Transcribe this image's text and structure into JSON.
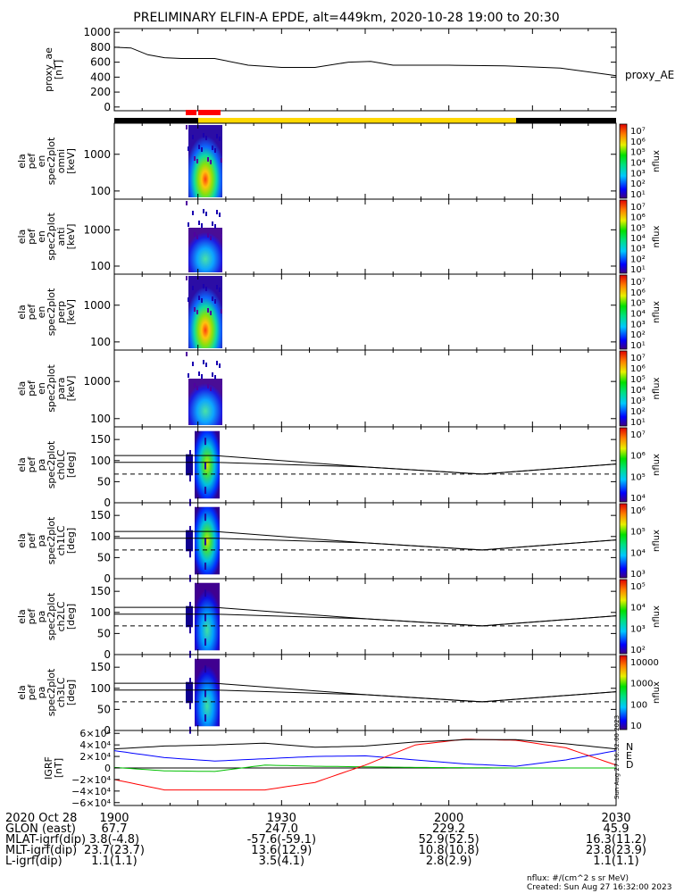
{
  "title": "PRELIMINARY ELFIN-A EPDE, alt=449km, 2020-10-28 19:00 to 20:30",
  "colors": {
    "red_bar": "#ff0000",
    "yellow_bar": "#ffd800",
    "black_bar": "#000000",
    "bx": "#0000ff",
    "by": "#00c000",
    "bz": "#ff0000",
    "bmag": "#000000"
  },
  "chart_data": [
    {
      "type": "line",
      "name": "proxy_ae",
      "ylabel": [
        "proxy_ae",
        "[nT]"
      ],
      "legend": "proxy_AE",
      "yticks": [
        "1000",
        "800",
        "600",
        "400",
        "200",
        "0"
      ],
      "ytick_values": [
        1000,
        800,
        600,
        400,
        200,
        0
      ],
      "ylim": [
        -50,
        1050
      ],
      "x": [
        0,
        3,
        6,
        9,
        12,
        18,
        24,
        30,
        36,
        42,
        46,
        50,
        54,
        60,
        70,
        80,
        88,
        90
      ],
      "y": [
        800,
        790,
        700,
        660,
        650,
        650,
        560,
        530,
        530,
        600,
        610,
        560,
        560,
        560,
        550,
        520,
        440,
        420
      ]
    },
    {
      "type": "heatmap",
      "name": "en-omni",
      "ylabel": [
        "ela",
        "pef",
        "en",
        "spec2plot",
        "omni",
        "[keV]"
      ],
      "yticks": [
        "1000",
        "100"
      ],
      "ytick_values": [
        1000,
        100
      ],
      "ylim_log": [
        60,
        7000
      ],
      "colorbar": "log 10^1-10^7 nflux"
    },
    {
      "type": "heatmap",
      "name": "en-anti",
      "ylabel": [
        "ela",
        "pef",
        "en",
        "spec2plot",
        "anti",
        "[keV]"
      ],
      "yticks": [
        "1000",
        "100"
      ],
      "ytick_values": [
        1000,
        100
      ],
      "ylim_log": [
        60,
        7000
      ],
      "colorbar": "log 10^1-10^7 nflux"
    },
    {
      "type": "heatmap",
      "name": "en-perp",
      "ylabel": [
        "ela",
        "pef",
        "en",
        "spec2plot",
        "perp",
        "[keV]"
      ],
      "yticks": [
        "1000",
        "100"
      ],
      "ytick_values": [
        1000,
        100
      ],
      "ylim_log": [
        60,
        7000
      ],
      "colorbar": "log 10^1-10^7 nflux"
    },
    {
      "type": "heatmap",
      "name": "en-para",
      "ylabel": [
        "ela",
        "pef",
        "en",
        "spec2plot",
        "para",
        "[keV]"
      ],
      "yticks": [
        "1000",
        "100"
      ],
      "ytick_values": [
        1000,
        100
      ],
      "ylim_log": [
        60,
        7000
      ],
      "colorbar": "log 10^1-10^7 nflux"
    },
    {
      "type": "heatmap",
      "name": "ch0lc",
      "ylabel": [
        "ela",
        "pef",
        "pa",
        "spec2plot",
        "ch0LC",
        "[deg]"
      ],
      "yticks": [
        "150",
        "100",
        "50",
        "0"
      ],
      "ytick_values": [
        150,
        100,
        50,
        0
      ],
      "ylim": [
        0,
        180
      ],
      "colorbar": "log 10^4-10^7 nflux"
    },
    {
      "type": "heatmap",
      "name": "ch1lc",
      "ylabel": [
        "ela",
        "pef",
        "pa",
        "spec2plot",
        "ch1LC",
        "[deg]"
      ],
      "yticks": [
        "150",
        "100",
        "50",
        "0"
      ],
      "ytick_values": [
        150,
        100,
        50,
        0
      ],
      "ylim": [
        0,
        180
      ],
      "colorbar": "log 10^3-10^6 nflux"
    },
    {
      "type": "heatmap",
      "name": "ch2lc",
      "ylabel": [
        "ela",
        "pef",
        "pa",
        "spec2plot",
        "ch2LC",
        "[deg]"
      ],
      "yticks": [
        "150",
        "100",
        "50",
        "0"
      ],
      "ytick_values": [
        150,
        100,
        50,
        0
      ],
      "ylim": [
        0,
        180
      ],
      "colorbar": "log 10^2-10^5 nflux"
    },
    {
      "type": "heatmap",
      "name": "ch3lc",
      "ylabel": [
        "ela",
        "pef",
        "pa",
        "spec2plot",
        "ch3LC",
        "[deg]"
      ],
      "yticks": [
        "150",
        "100",
        "50",
        "0"
      ],
      "ytick_values": [
        150,
        100,
        50,
        0
      ],
      "ylim": [
        0,
        180
      ],
      "colorbar": "10-10000 nflux"
    },
    {
      "type": "line",
      "name": "igrf",
      "ylabel": [
        "IGRF",
        "[nT]"
      ],
      "yticks": [
        "6×10⁴",
        "4×10⁴",
        "2×10⁴",
        "0",
        "−2×10⁴",
        "−4×10⁴",
        "−6×10⁴"
      ],
      "ytick_values": [
        60000,
        40000,
        20000,
        0,
        -20000,
        -40000,
        -60000
      ],
      "ylim": [
        -65000,
        65000
      ],
      "legend": [
        "N",
        "E",
        "D"
      ],
      "x": [
        0,
        9,
        18,
        27,
        36,
        45,
        54,
        63,
        72,
        81,
        90
      ],
      "series": [
        {
          "name": "N",
          "values": [
            30000,
            18000,
            12000,
            16000,
            20000,
            21000,
            14000,
            7000,
            3000,
            14000,
            30000
          ]
        },
        {
          "name": "E",
          "values": [
            1000,
            -5000,
            -6000,
            5000,
            3000,
            2000,
            1000,
            500,
            0,
            0,
            0
          ]
        },
        {
          "name": "D",
          "values": [
            -20000,
            -38000,
            -38000,
            -38000,
            -25000,
            5000,
            40000,
            50000,
            48000,
            35000,
            5000
          ]
        },
        {
          "name": "|B|",
          "values": [
            33000,
            38000,
            40000,
            43000,
            36000,
            38000,
            45000,
            49000,
            49000,
            42000,
            33000
          ]
        }
      ]
    }
  ],
  "colorbars": [
    {
      "labels": [
        "10⁷",
        "10⁶",
        "10⁵",
        "10⁴",
        "10³",
        "10²",
        "10¹"
      ],
      "unit": "nflux"
    },
    {
      "labels": [
        "10⁷",
        "10⁶",
        "10⁵",
        "10⁴",
        "10³",
        "10²",
        "10¹"
      ],
      "unit": "nflux"
    },
    {
      "labels": [
        "10⁷",
        "10⁶",
        "10⁵",
        "10⁴",
        "10³",
        "10²",
        "10¹"
      ],
      "unit": "nflux"
    },
    {
      "labels": [
        "10⁷",
        "10⁶",
        "10⁵",
        "10⁴",
        "10³",
        "10²",
        "10¹"
      ],
      "unit": "nflux"
    },
    {
      "labels": [
        "10⁷",
        "10⁶",
        "10⁵",
        "10⁴"
      ],
      "unit": "nflux"
    },
    {
      "labels": [
        "10⁶",
        "10⁵",
        "10⁴",
        "10³"
      ],
      "unit": "nflux"
    },
    {
      "labels": [
        "10⁵",
        "10⁴",
        "10³",
        "10²"
      ],
      "unit": "nflux"
    },
    {
      "labels": [
        "10000",
        "1000",
        "100",
        "10"
      ],
      "unit": "nflux"
    }
  ],
  "ephemeris": {
    "labels": [
      "2020 Oct 28",
      "GLON (east)",
      "MLAT-igrf(dip)",
      "MLT-igrf(dip)",
      "L-igrf(dip)"
    ],
    "columns": [
      {
        "x": 0,
        "values": [
          "1900",
          "67.7",
          "3.8(-4.8)",
          "23.7(23.7)",
          "1.1(1.1)"
        ]
      },
      {
        "x": 30,
        "values": [
          "1930",
          "247.0",
          "-57.6(-59.1)",
          "13.6(12.9)",
          "3.5(4.1)"
        ]
      },
      {
        "x": 60,
        "values": [
          "2000",
          "229.2",
          "52.9(52.5)",
          "10.8(10.8)",
          "2.8(2.9)"
        ]
      },
      {
        "x": 90,
        "values": [
          "2030",
          "45.9",
          "16.3(11.2)",
          "23.8(23.9)",
          "1.1(1.1)"
        ]
      }
    ]
  },
  "footer": {
    "nflux": "nflux: #/(cm^2 s sr MeV)",
    "created": "Created: Sun Aug 27 16:32:00 2023",
    "side_stamp": "Sun Aug 27 16:32:00 2023"
  }
}
